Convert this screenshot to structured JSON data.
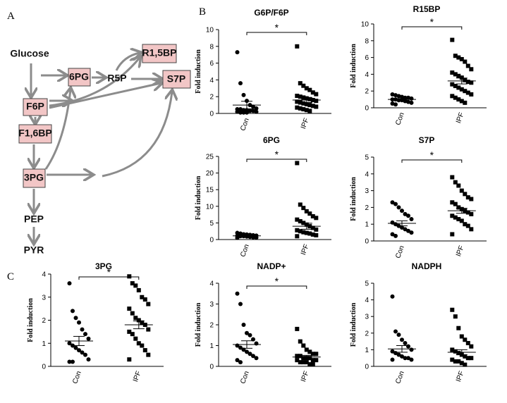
{
  "panel_labels": [
    "A",
    "B",
    "C"
  ],
  "pathway": {
    "nodes": [
      "Glucose",
      "6PG",
      "R5P",
      "R1,5BP",
      "S7P",
      "F6P",
      "F1,6BP",
      "3PG",
      "PEP",
      "PYR"
    ]
  },
  "chart_data": [
    {
      "type": "dotplot",
      "title": "G6P/F6P",
      "ylabel": "Fold induction",
      "categories": [
        "Con",
        "IPF"
      ],
      "significance": "*",
      "ylim": [
        0,
        10
      ],
      "yticks": [
        0,
        2,
        4,
        6,
        8,
        10
      ],
      "groups": [
        {
          "marker": "circle",
          "values": [
            7.3,
            3.6,
            2.2,
            1.5,
            1.0,
            0.8,
            0.6,
            0.5,
            0.5,
            0.4,
            0.4,
            0.3,
            0.3,
            0.2,
            0.2,
            0.1,
            0.1,
            0.1
          ],
          "mean": 1.0,
          "sem": 0.45
        },
        {
          "marker": "square",
          "values": [
            8.0,
            3.6,
            3.3,
            3.0,
            2.8,
            2.5,
            2.3,
            2.1,
            2.0,
            1.9,
            1.8,
            1.7,
            1.6,
            1.5,
            1.4,
            1.3,
            1.2,
            1.1,
            1.0,
            0.9,
            0.8,
            0.7,
            0.6,
            0.5,
            0.4,
            0.3
          ],
          "mean": 1.6,
          "sem": 0.3
        }
      ]
    },
    {
      "type": "dotplot",
      "title": "R15BP",
      "ylabel": "Fold induction",
      "categories": [
        "Con",
        "IPF"
      ],
      "significance": "*",
      "ylim": [
        0,
        10
      ],
      "yticks": [
        0,
        2,
        4,
        6,
        8,
        10
      ],
      "groups": [
        {
          "marker": "circle",
          "values": [
            1.6,
            1.5,
            1.4,
            1.3,
            1.2,
            1.2,
            1.1,
            1.0,
            1.0,
            0.9,
            0.9,
            0.8,
            0.7,
            0.6,
            0.5,
            0.4
          ],
          "mean": 1.0,
          "sem": 0.1
        },
        {
          "marker": "square",
          "values": [
            8.1,
            6.2,
            6.0,
            5.8,
            5.5,
            5.0,
            4.6,
            4.2,
            4.0,
            3.8,
            3.6,
            3.3,
            3.1,
            3.0,
            2.8,
            2.6,
            2.4,
            2.2,
            2.0,
            1.8,
            1.6,
            1.4,
            1.2,
            1.0,
            0.8,
            0.6
          ],
          "mean": 3.2,
          "sem": 0.35
        }
      ]
    },
    {
      "type": "dotplot",
      "title": "6PG",
      "ylabel": "Fold induction",
      "categories": [
        "Con",
        "IPF"
      ],
      "significance": "*",
      "ylim": [
        0,
        25
      ],
      "yticks": [
        0,
        5,
        10,
        15,
        20,
        25
      ],
      "groups": [
        {
          "marker": "circle",
          "values": [
            2.0,
            1.8,
            1.6,
            1.5,
            1.4,
            1.3,
            1.2,
            1.1,
            1.0,
            1.0,
            0.9,
            0.8,
            0.7,
            0.6,
            0.5
          ],
          "mean": 1.1,
          "sem": 0.1
        },
        {
          "marker": "square",
          "values": [
            23,
            10.5,
            9.5,
            8.5,
            7.8,
            7.0,
            6.5,
            6.0,
            5.5,
            5.0,
            4.5,
            4.0,
            3.5,
            3.0,
            2.8,
            2.5,
            2.2,
            2.0,
            1.8,
            1.5,
            1.3,
            1.0
          ],
          "mean": 4.0,
          "sem": 0.9
        }
      ]
    },
    {
      "type": "dotplot",
      "title": "S7P",
      "ylabel": "Fold induction",
      "categories": [
        "Con",
        "IPF"
      ],
      "significance": "*",
      "ylim": [
        0,
        5
      ],
      "yticks": [
        0,
        1,
        2,
        3,
        4,
        5
      ],
      "groups": [
        {
          "marker": "circle",
          "values": [
            2.3,
            2.2,
            2.0,
            1.8,
            1.6,
            1.5,
            1.3,
            1.1,
            1.0,
            0.9,
            0.8,
            0.7,
            0.6,
            0.5,
            0.4,
            0.3
          ],
          "mean": 1.05,
          "sem": 0.15
        },
        {
          "marker": "square",
          "values": [
            3.8,
            3.5,
            3.3,
            3.0,
            2.8,
            2.6,
            2.5,
            2.3,
            2.2,
            2.0,
            1.9,
            1.8,
            1.7,
            1.6,
            1.5,
            1.4,
            1.3,
            1.2,
            1.0,
            0.9,
            0.7,
            0.4
          ],
          "mean": 1.8,
          "sem": 0.15
        }
      ]
    },
    {
      "type": "dotplot",
      "title": "3PG",
      "ylabel": "Fold induction",
      "categories": [
        "Con",
        "IPF"
      ],
      "significance": "*",
      "ylim": [
        0,
        4
      ],
      "yticks": [
        0,
        1,
        2,
        3,
        4
      ],
      "groups": [
        {
          "marker": "circle",
          "values": [
            3.6,
            2.4,
            2.1,
            1.9,
            1.6,
            1.4,
            1.2,
            1.0,
            0.9,
            0.8,
            0.7,
            0.6,
            0.5,
            0.3,
            0.2,
            0.2
          ],
          "mean": 1.1,
          "sem": 0.2
        },
        {
          "marker": "square",
          "values": [
            3.9,
            3.6,
            3.5,
            3.3,
            3.0,
            2.9,
            2.7,
            2.5,
            2.3,
            2.1,
            2.0,
            1.9,
            1.8,
            1.6,
            1.5,
            1.4,
            1.2,
            1.0,
            0.9,
            0.7,
            0.5,
            0.3
          ],
          "mean": 1.8,
          "sem": 0.17
        }
      ]
    },
    {
      "type": "dotplot",
      "title": "NADP+",
      "ylabel": "Fold induction",
      "categories": [
        "Con",
        "IPF"
      ],
      "significance": "*",
      "ylim": [
        0,
        4
      ],
      "yticks": [
        0,
        1,
        2,
        3,
        4
      ],
      "groups": [
        {
          "marker": "circle",
          "values": [
            3.5,
            3.0,
            2.0,
            1.6,
            1.5,
            1.3,
            1.1,
            1.0,
            0.9,
            0.8,
            0.7,
            0.6,
            0.5,
            0.4,
            0.3,
            0.2
          ],
          "mean": 1.05,
          "sem": 0.18
        },
        {
          "marker": "square",
          "values": [
            1.8,
            1.2,
            1.0,
            0.8,
            0.7,
            0.6,
            0.6,
            0.5,
            0.5,
            0.4,
            0.4,
            0.4,
            0.3,
            0.3,
            0.3,
            0.2,
            0.2,
            0.2,
            0.1,
            0.1
          ],
          "mean": 0.45,
          "sem": 0.08
        }
      ]
    },
    {
      "type": "dotplot",
      "title": "NADPH",
      "ylabel": "Fold induction",
      "categories": [
        "Con",
        "IPF"
      ],
      "ylim": [
        0,
        5
      ],
      "yticks": [
        0,
        1,
        2,
        3,
        4,
        5
      ],
      "groups": [
        {
          "marker": "circle",
          "values": [
            4.2,
            2.1,
            1.9,
            1.6,
            1.4,
            1.2,
            1.0,
            0.9,
            0.8,
            0.7,
            0.6,
            0.5,
            0.5,
            0.4,
            0.4
          ],
          "mean": 1.05,
          "sem": 0.2
        },
        {
          "marker": "square",
          "values": [
            3.4,
            3.0,
            2.3,
            1.8,
            1.6,
            1.4,
            1.2,
            1.0,
            0.9,
            0.8,
            0.7,
            0.6,
            0.5,
            0.5,
            0.4,
            0.3,
            0.3,
            0.2,
            0.1
          ],
          "mean": 0.85,
          "sem": 0.15
        }
      ]
    }
  ]
}
